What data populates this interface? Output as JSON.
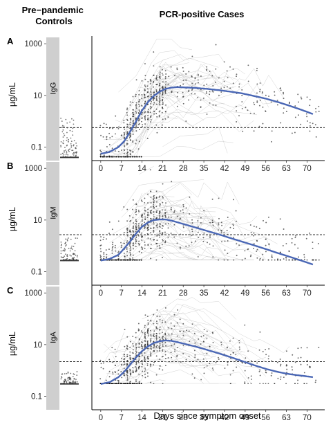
{
  "header": {
    "left_title": "Pre−pandemic\nControls",
    "right_title": "PCR-positive Cases"
  },
  "colors": {
    "fit_line": "#4a67b5",
    "points": "#3a3a3a",
    "strip": "#cfcfcf",
    "threshold": "#000000"
  },
  "chart_data": [
    {
      "panel": "A",
      "type": "scatter",
      "antibody": "IgG",
      "ylabel": "µg/mL",
      "xlabel": "",
      "y_scale": "log10",
      "ylim": [
        0.03,
        2000
      ],
      "xlim": [
        -3,
        76
      ],
      "yticks": [
        "0.1",
        "10",
        "1000"
      ],
      "ytick_values": [
        0.1,
        10,
        1000
      ],
      "xticks": [
        "0",
        "7",
        "14",
        "21",
        "28",
        "35",
        "42",
        "49",
        "56",
        "63",
        "70"
      ],
      "threshold": 0.57,
      "controls_floor": 0.04,
      "controls_max": 1.3,
      "fit_line": {
        "x": [
          0,
          3,
          6,
          8,
          10,
          12,
          14,
          16,
          18,
          20,
          22,
          24,
          26,
          28,
          32,
          36,
          40,
          44,
          48,
          52,
          56,
          60,
          64,
          68,
          72
        ],
        "y": [
          0.055,
          0.065,
          0.1,
          0.17,
          0.4,
          1.0,
          2.6,
          5.5,
          9.5,
          14,
          18,
          20,
          21,
          20.5,
          19.5,
          18,
          16,
          14,
          12,
          9.5,
          7.5,
          5.6,
          4.0,
          2.8,
          1.9
        ]
      }
    },
    {
      "panel": "B",
      "type": "scatter",
      "antibody": "IgM",
      "ylabel": "µg/mL",
      "xlabel": "",
      "y_scale": "log10",
      "ylim": [
        0.03,
        2000
      ],
      "xlim": [
        -3,
        76
      ],
      "yticks": [
        "0.1",
        "10",
        "1000"
      ],
      "ytick_values": [
        0.1,
        10,
        1000
      ],
      "xticks": [
        "0",
        "7",
        "14",
        "21",
        "28",
        "35",
        "42",
        "49",
        "56",
        "63",
        "70"
      ],
      "threshold": 2.7,
      "controls_floor": 0.27,
      "controls_max": 2.0,
      "fit_line": {
        "x": [
          0,
          3,
          6,
          8,
          10,
          12,
          14,
          16,
          18,
          20,
          22,
          24,
          26,
          28,
          32,
          36,
          40,
          44,
          48,
          52,
          56,
          60,
          64,
          68,
          72
        ],
        "y": [
          0.27,
          0.31,
          0.45,
          0.8,
          1.5,
          3.0,
          5.5,
          8.0,
          10,
          10.5,
          10.5,
          9.5,
          8.2,
          7.0,
          5.2,
          3.8,
          2.8,
          2.0,
          1.45,
          1.05,
          0.75,
          0.53,
          0.38,
          0.27,
          0.19
        ]
      }
    },
    {
      "panel": "C",
      "type": "scatter",
      "antibody": "IgA",
      "ylabel": "µg/mL",
      "xlabel": "Days since symptom onset",
      "y_scale": "log10",
      "ylim": [
        0.03,
        2000
      ],
      "xlim": [
        -3,
        76
      ],
      "yticks": [
        "0.1",
        "10",
        "1000"
      ],
      "ytick_values": [
        0.1,
        10,
        1000
      ],
      "xticks": [
        "0",
        "7",
        "14",
        "21",
        "28",
        "35",
        "42",
        "49",
        "56",
        "63",
        "70"
      ],
      "threshold": 2.2,
      "controls_floor": 0.3,
      "controls_max": 0.9,
      "fit_line": {
        "x": [
          0,
          3,
          6,
          8,
          10,
          12,
          14,
          16,
          18,
          20,
          22,
          24,
          26,
          28,
          32,
          36,
          40,
          44,
          48,
          52,
          56,
          60,
          64,
          68,
          72
        ],
        "y": [
          0.3,
          0.35,
          0.55,
          0.9,
          1.7,
          3.2,
          5.6,
          8.5,
          11.5,
          13.5,
          14.5,
          14,
          12.5,
          11,
          8.5,
          6.3,
          4.6,
          3.3,
          2.3,
          1.6,
          1.15,
          0.88,
          0.72,
          0.63,
          0.55
        ]
      }
    }
  ]
}
